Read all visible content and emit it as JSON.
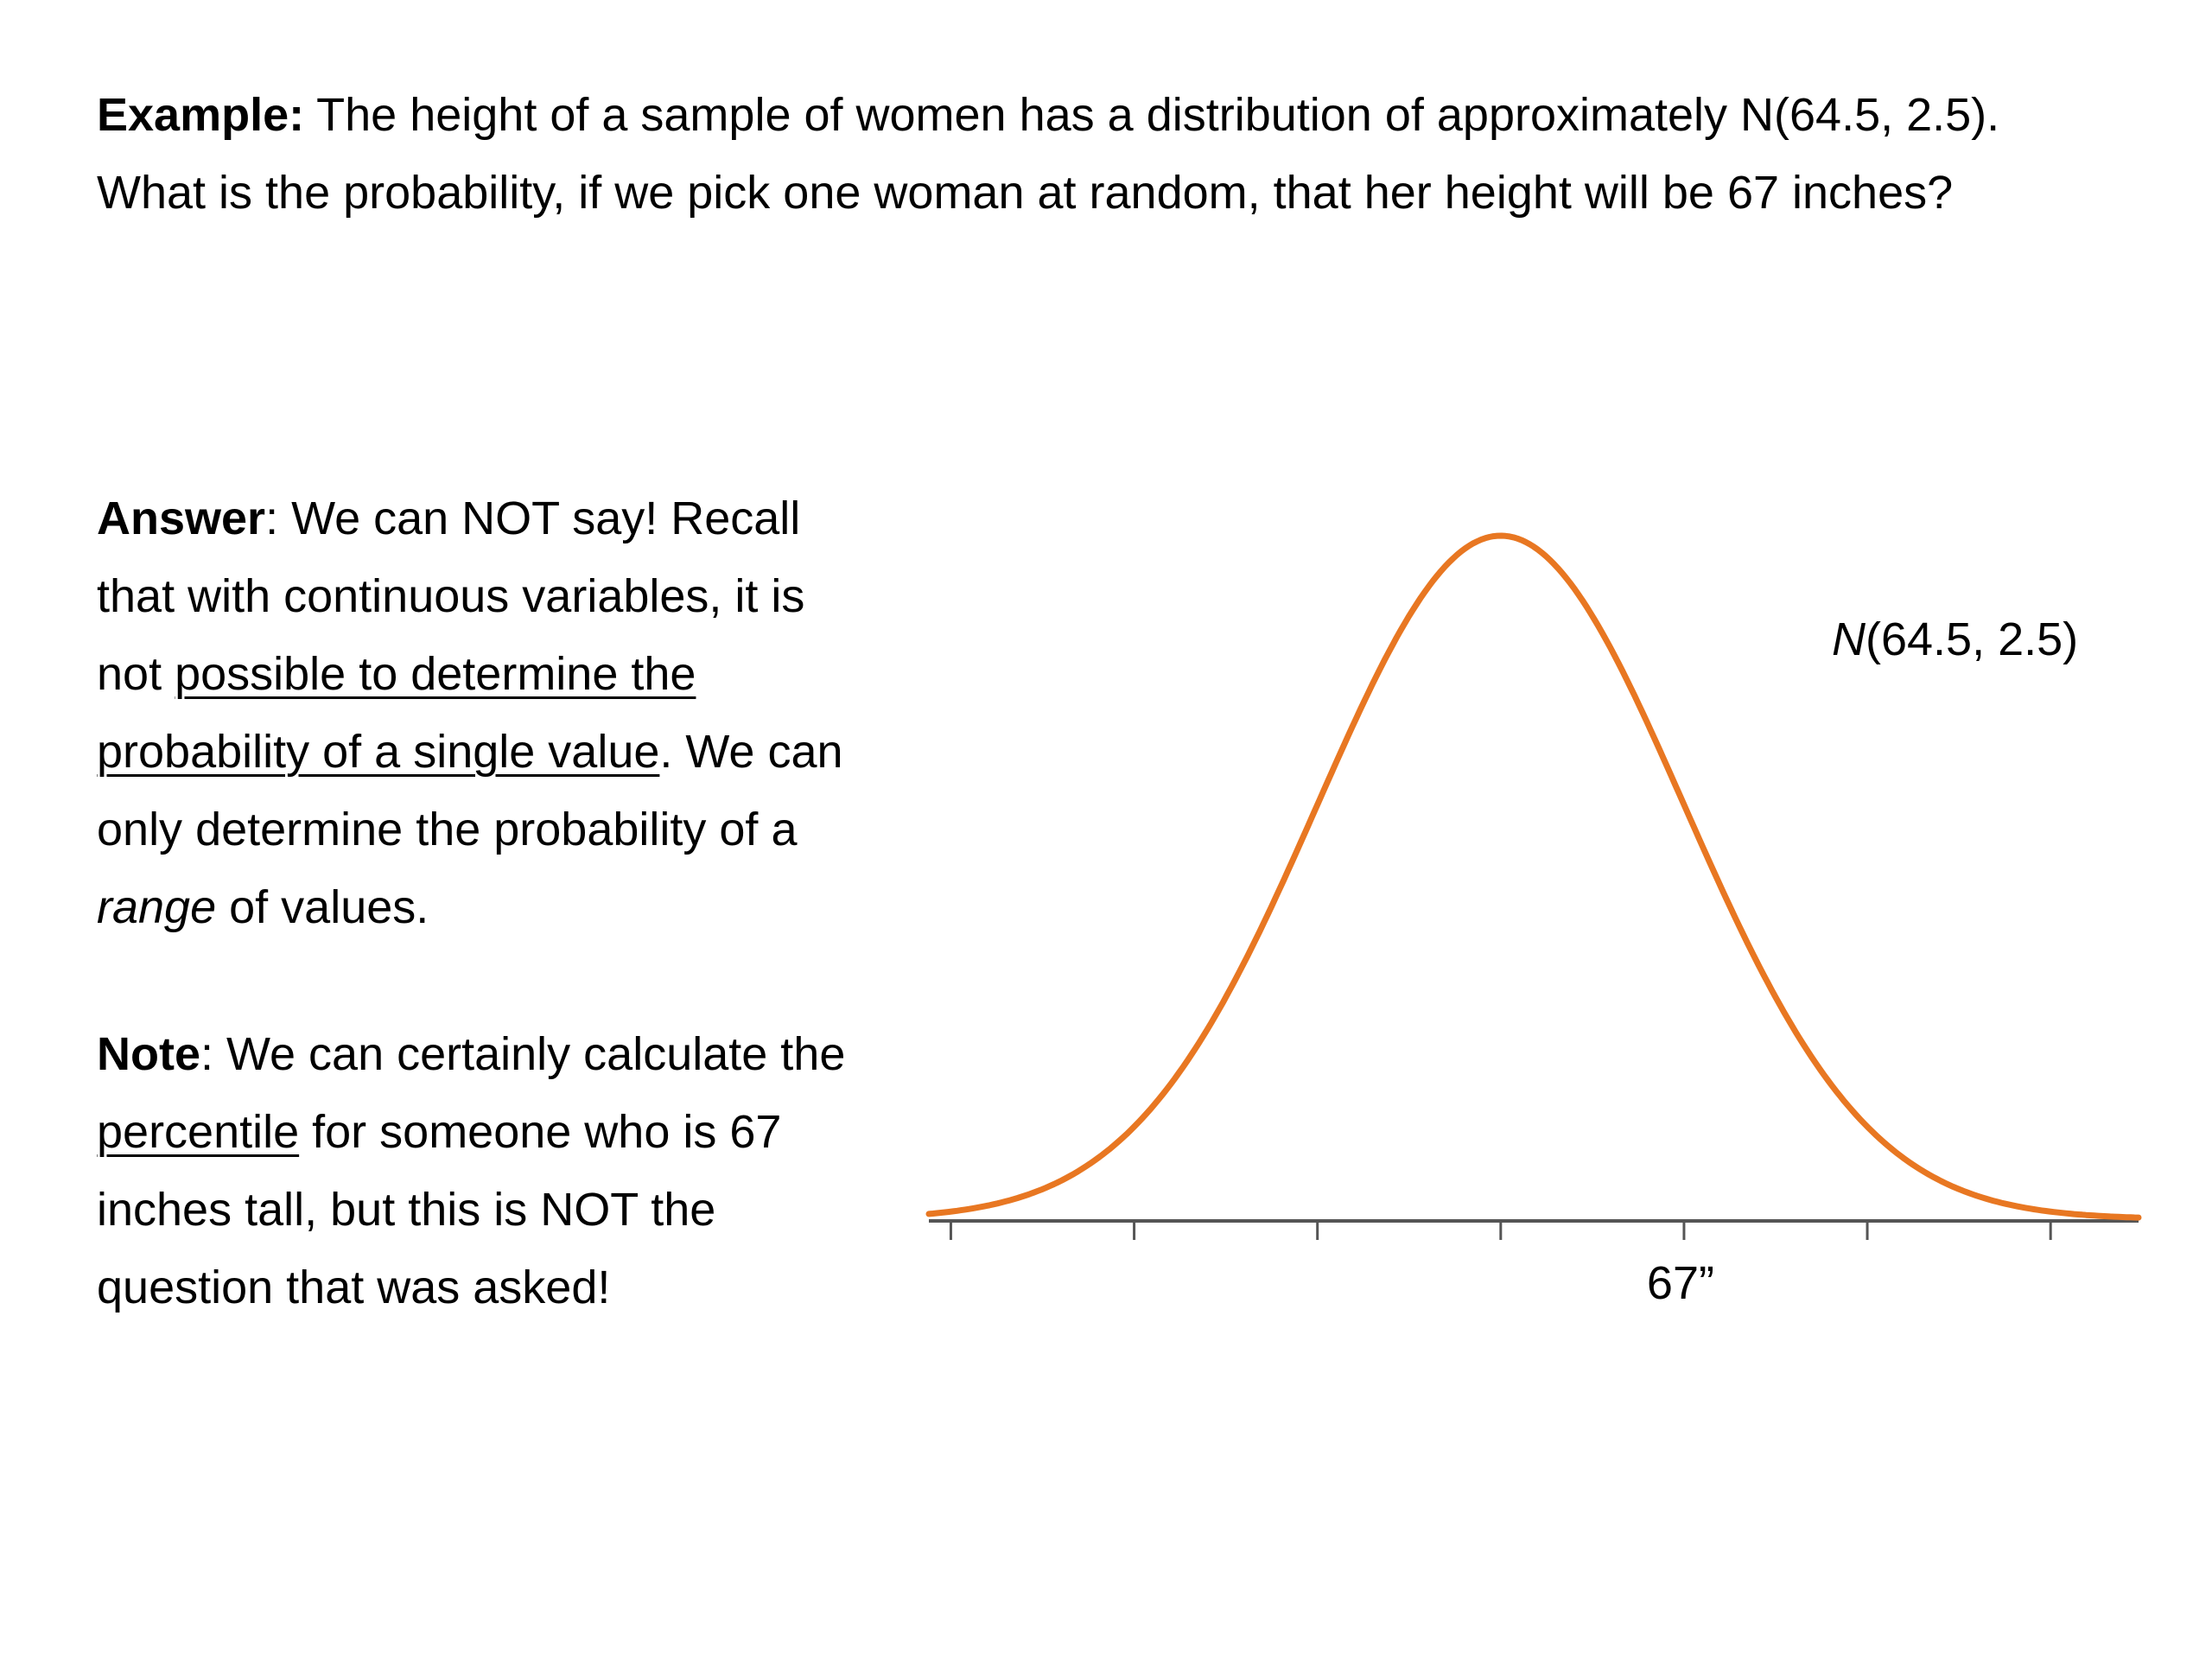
{
  "example": {
    "label": "Example:",
    "text": " The height of a sample of women has a distribution of approximately N(64.5, 2.5). What is the probability, if we pick one woman at random, that her height will be 67 inches?"
  },
  "answer": {
    "label": "Answer",
    "t1": ": We can NOT say! Recall that with continuous variables, it is not ",
    "u1": "possible to determine the probability of a single value",
    "t2": ". We can only determine the probability of a ",
    "em": "range",
    "t3": " of values."
  },
  "note": {
    "label": "Note",
    "t1": ": We can certainly calculate the ",
    "u1": "percentile",
    "t2": " for someone who is 67 inches tall, but this is NOT the question that was asked!"
  },
  "chart_data": {
    "type": "line",
    "distribution": "normal",
    "mean": 64.5,
    "sd": 2.5,
    "curve_label_italic": "N",
    "curve_label_rest": "(64.5, 2.5)",
    "xlim": [
      56.7,
      73.2
    ],
    "ticks": [
      57,
      59.5,
      62,
      64.5,
      67,
      69.5,
      72
    ],
    "tick_labels": [
      {
        "x": 67,
        "label": "67”"
      }
    ],
    "curve_color": "#E87722",
    "axis_color": "#555555"
  }
}
